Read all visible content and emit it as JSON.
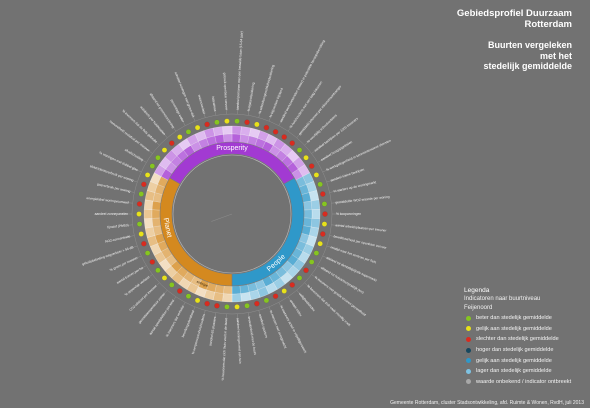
{
  "title": {
    "line1": "Gebiedsprofiel Duurzaam",
    "line2": "Rotterdam",
    "subtitle_line1": "Buurten vergeleken",
    "subtitle_line2": "met het",
    "subtitle_line3": "stedelijk gemiddelde"
  },
  "sectors": [
    {
      "label": "Prosperity",
      "color": "#a23ad2",
      "start_deg": 300,
      "end_deg": 60
    },
    {
      "label": "People",
      "color": "#2f98c9",
      "start_deg": 60,
      "end_deg": 180
    },
    {
      "label": "Planet",
      "color": "#d4891f",
      "start_deg": 180,
      "end_deg": 300
    }
  ],
  "ring_labels": {
    "planet_bottom": "energie"
  },
  "indicators": [
    "aandeel personen met een betaalde baan (15-64 jaar)",
    "% bijstandsuitkering",
    "% arbeidsongeschiktheidsuitkering",
    "% bijzondere bijstand",
    "aandeel werkzoekenden (nwwz) in potentiële beroepsbevolking",
    "% huishoudens met een laag inkomen",
    "gemiddeld inkomen per inkomensontvanger",
    "% voortijdig schoolverlaters",
    "aandeel bedrijven per 1000 inwoners",
    "aandeel hoogopgeleiden",
    "% werkgelegenheid in kennisintensieve diensten",
    "aandeel kleine bedrijven",
    "% starters op de woningmarkt",
    "gemiddelde WOZ-waarde per woning",
    "% koopwoningen",
    "aantal arbeidsplaatsen per inwoner",
    "bereikbaarheid per openbaar vervoer",
    "reistijd naar het centrum per fiets",
    "afstand tot dichtstbijzijnde supermarkt",
    "afstand tot huisartsenpraktijk (km)",
    "% inwoners met goede ervaren gezondheid",
    "% bewoners dat zich vaak onveilig voelt",
    "veiligheidsindex",
    "sociale index",
    "% inwoners actief in vrijwilligerswerk",
    "% mensen met overgewicht",
    "aandeel sporters",
    "tevredenheid met de buurt",
    "aandeel woningen met een tuin",
    "% bewoners dat zich thuis voelt in de buurt",
    "aandeel 65-plussers",
    "% eenpersoonshuishoudens",
    "bevolkingsdichtheid",
    "% inwoners dat verhuist",
    "aantal speelplekken per kind",
    "gevoelstemperatuur zomer",
    "CO2-uitstoot per inwoner",
    "% oppervlak verhard",
    "aantal bomen per ha",
    "% groen per inwoner",
    "geluidsbelasting wegverkeer > 55 dB",
    "NO2-concentratie",
    "fijnstof (PM10)",
    "aandeel zonnepanelen",
    "energielabel woningvoorraad",
    "gasverbruik per woning",
    "elektriciteitsverbruik per woning",
    "% woningen met dubbel glas",
    "afvalscheiding",
    "hoeveelheid restafval per inwoner",
    "% inwoners dat de fiets gebruikt",
    "autobezit per huishouden",
    "afstand tot groenvoorziening",
    "percentage water",
    "aandeel woningen met groen dak",
    "wateroverlast",
    "hittestress",
    "gebruik openbaar vervoer"
  ],
  "indicator_status": [
    "green",
    "red",
    "yellow",
    "red",
    "red",
    "red",
    "red",
    "green",
    "yellow",
    "red",
    "yellow",
    "green",
    "red",
    "green",
    "red",
    "yellow",
    "red",
    "yellow",
    "green",
    "green",
    "red",
    "green",
    "red",
    "yellow",
    "red",
    "green",
    "red",
    "green",
    "yellow",
    "green",
    "red",
    "red",
    "yellow",
    "green",
    "red",
    "green",
    "yellow",
    "green",
    "red",
    "green",
    "red",
    "yellow",
    "green",
    "yellow",
    "red",
    "green",
    "red",
    "yellow",
    "green",
    "green",
    "yellow",
    "red",
    "yellow",
    "green",
    "yellow",
    "red",
    "green",
    "yellow"
  ],
  "status_colors": {
    "green": "#86c520",
    "yellow": "#e8e21a",
    "red": "#d92b1f",
    "gray": "#a8a8a8"
  },
  "legend": {
    "title": "Legenda",
    "subtitle": "Indicatoren naar buurtniveau",
    "area": "Feijenoord",
    "items": [
      {
        "label": "beter dan stedelijk gemiddelde",
        "color": "#86c520"
      },
      {
        "label": "gelijk aan stedelijk gemiddelde",
        "color": "#e8e21a"
      },
      {
        "label": "slechter dan stedelijk gemiddelde",
        "color": "#d92b1f"
      },
      {
        "label": "hoger dan stedelijk gemiddelde",
        "color": "#17485f"
      },
      {
        "label": "gelijk aan stedelijk gemiddelde",
        "color": "#2f98c9"
      },
      {
        "label": "lager dan stedelijk gemiddelde",
        "color": "#7ec3e3"
      },
      {
        "label": "waarde onbekend / indicator ontbreekt",
        "color": "#a8a8a8"
      }
    ]
  },
  "footer": "Gemeente Rotterdam, cluster Stadsontwikkeling, afd. Ruimte & Wonen, RvdH, juli 2013"
}
